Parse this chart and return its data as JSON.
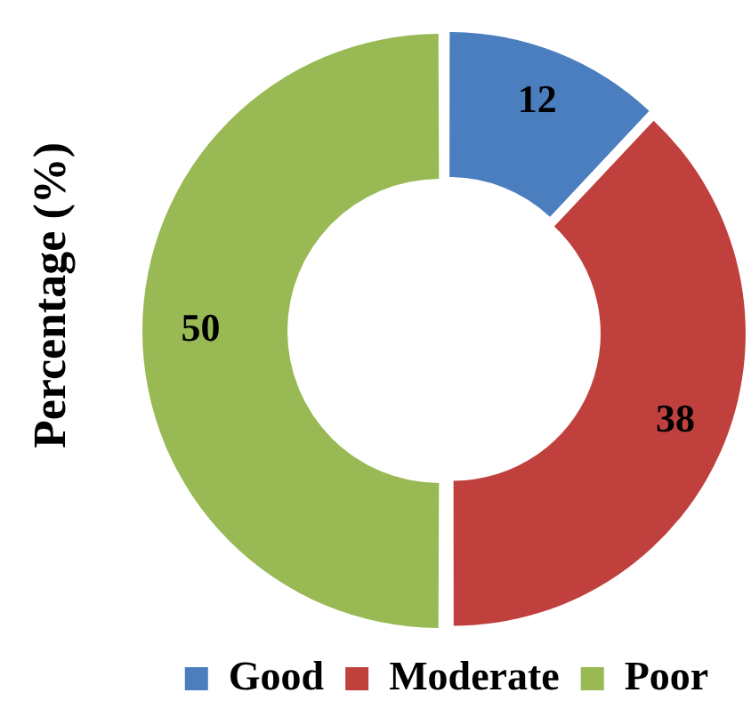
{
  "chart_data": {
    "type": "donut",
    "ylabel": "Percentage (%)",
    "categories": [
      "Good",
      "Moderate",
      "Poor"
    ],
    "values": [
      12,
      38,
      50
    ],
    "colors": [
      "#4a7ebf",
      "#c0403d",
      "#98b954"
    ],
    "data_labels": true,
    "legend": "bottom"
  }
}
